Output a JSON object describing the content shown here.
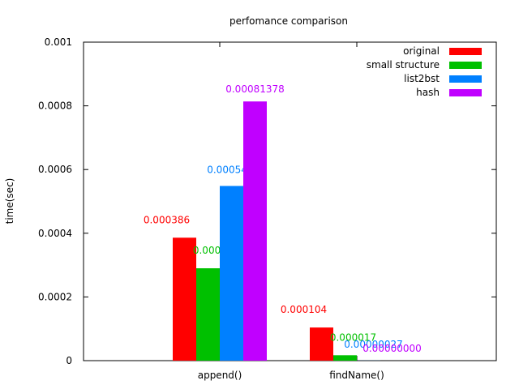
{
  "chart_data": {
    "type": "bar",
    "title": "perfomance comparison",
    "xlabel": "",
    "ylabel": "time(sec)",
    "ylim": [
      0,
      0.001
    ],
    "yticks": [
      "0",
      "0.0002",
      "0.0004",
      "0.0006",
      "0.0008",
      "0.001"
    ],
    "ytick_values": [
      0,
      0.0002,
      0.0004,
      0.0006,
      0.0008,
      0.001
    ],
    "categories": [
      "append()",
      "findName()"
    ],
    "grid": false,
    "legend_position": "top-right",
    "series": [
      {
        "name": "original",
        "color": "#ff0000",
        "values": [
          0.000386,
          0.000104
        ],
        "labels": [
          "0.000386",
          "0.000104"
        ]
      },
      {
        "name": "small structure",
        "color": "#00c000",
        "values": [
          0.00029,
          1.7e-05
        ],
        "labels": [
          "0.000290",
          "0.000017"
        ]
      },
      {
        "name": "list2bst",
        "color": "#0080ff",
        "values": [
          0.00054846,
          2.7e-07
        ],
        "labels": [
          "0.00054846",
          "0.00000027"
        ]
      },
      {
        "name": "hash",
        "color": "#c000ff",
        "values": [
          0.00081378,
          0.0
        ],
        "labels": [
          "0.00081378",
          "0.00000000"
        ]
      }
    ]
  }
}
